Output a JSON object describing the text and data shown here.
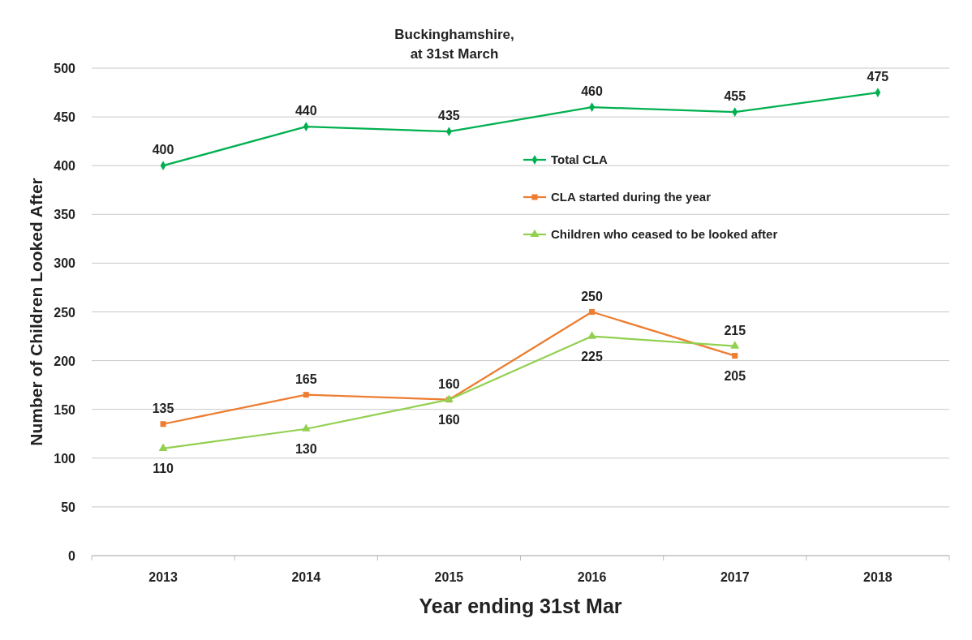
{
  "chart_data": {
    "type": "line",
    "title": "Buckinghamshire,\nat 31st March",
    "xlabel": "Year ending 31st Mar",
    "ylabel": "Number of Children Looked After",
    "categories": [
      "2013",
      "2014",
      "2015",
      "2016",
      "2017",
      "2018"
    ],
    "series": [
      {
        "name": "Total CLA",
        "color": "#00b050",
        "marker": "diamond",
        "values": [
          400,
          440,
          435,
          460,
          455,
          475
        ]
      },
      {
        "name": "CLA started during the year",
        "color": "#ed7d31",
        "marker": "square",
        "values": [
          135,
          165,
          160,
          250,
          205,
          null
        ]
      },
      {
        "name": "Children who ceased to be looked after",
        "color": "#92d050",
        "marker": "triangle",
        "values": [
          110,
          130,
          160,
          225,
          215,
          null
        ]
      }
    ],
    "ylim": [
      0,
      500
    ],
    "yticks": [
      0,
      50,
      100,
      150,
      200,
      250,
      300,
      350,
      400,
      450,
      500
    ],
    "grid": "y",
    "legend": "right",
    "data_labels": true,
    "line_style": "solid"
  }
}
